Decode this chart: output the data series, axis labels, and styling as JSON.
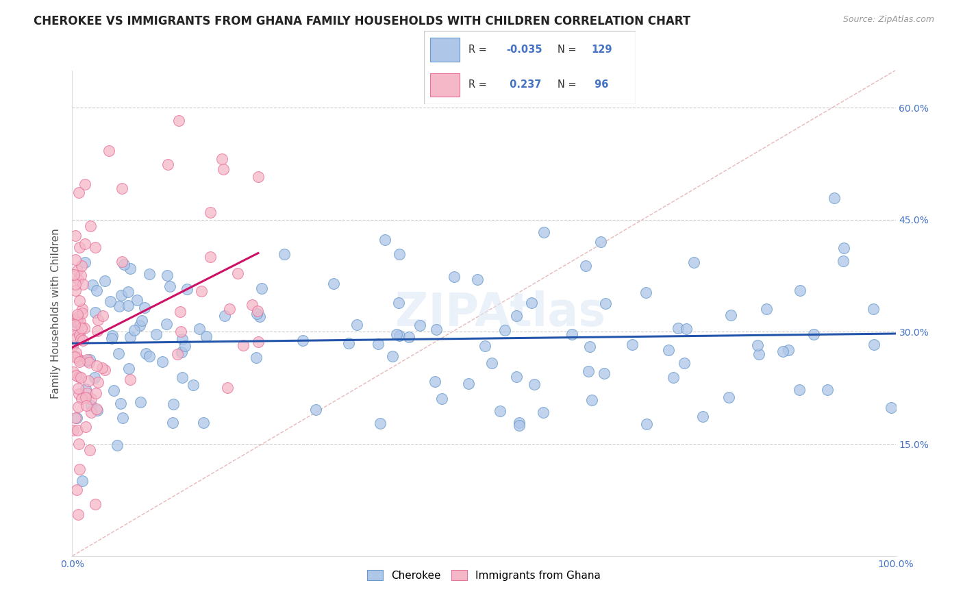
{
  "title": "CHEROKEE VS IMMIGRANTS FROM GHANA FAMILY HOUSEHOLDS WITH CHILDREN CORRELATION CHART",
  "source": "Source: ZipAtlas.com",
  "ylabel": "Family Households with Children",
  "xlim": [
    0,
    1.0
  ],
  "ylim": [
    0,
    0.65
  ],
  "xticks": [
    0.0,
    0.1,
    0.2,
    0.3,
    0.4,
    0.5,
    0.6,
    0.7,
    0.8,
    0.9,
    1.0
  ],
  "xticklabels": [
    "0.0%",
    "",
    "",
    "",
    "",
    "",
    "",
    "",
    "",
    "",
    "100.0%"
  ],
  "yticks": [
    0.0,
    0.15,
    0.3,
    0.45,
    0.6
  ],
  "yticklabels_right": [
    "",
    "15.0%",
    "30.0%",
    "45.0%",
    "60.0%"
  ],
  "blue_color": "#aec6e8",
  "blue_edge_color": "#6699cc",
  "pink_color": "#f4b8c8",
  "pink_edge_color": "#e8709a",
  "blue_line_color": "#2255aa",
  "pink_line_color": "#cc1166",
  "diagonal_color": "#ddbbbb",
  "title_fontsize": 12,
  "axis_fontsize": 11,
  "tick_fontsize": 10,
  "tick_color": "#4472C4",
  "cherokee_R": -0.035,
  "cherokee_N": 129,
  "ghana_R": 0.237,
  "ghana_N": 96
}
